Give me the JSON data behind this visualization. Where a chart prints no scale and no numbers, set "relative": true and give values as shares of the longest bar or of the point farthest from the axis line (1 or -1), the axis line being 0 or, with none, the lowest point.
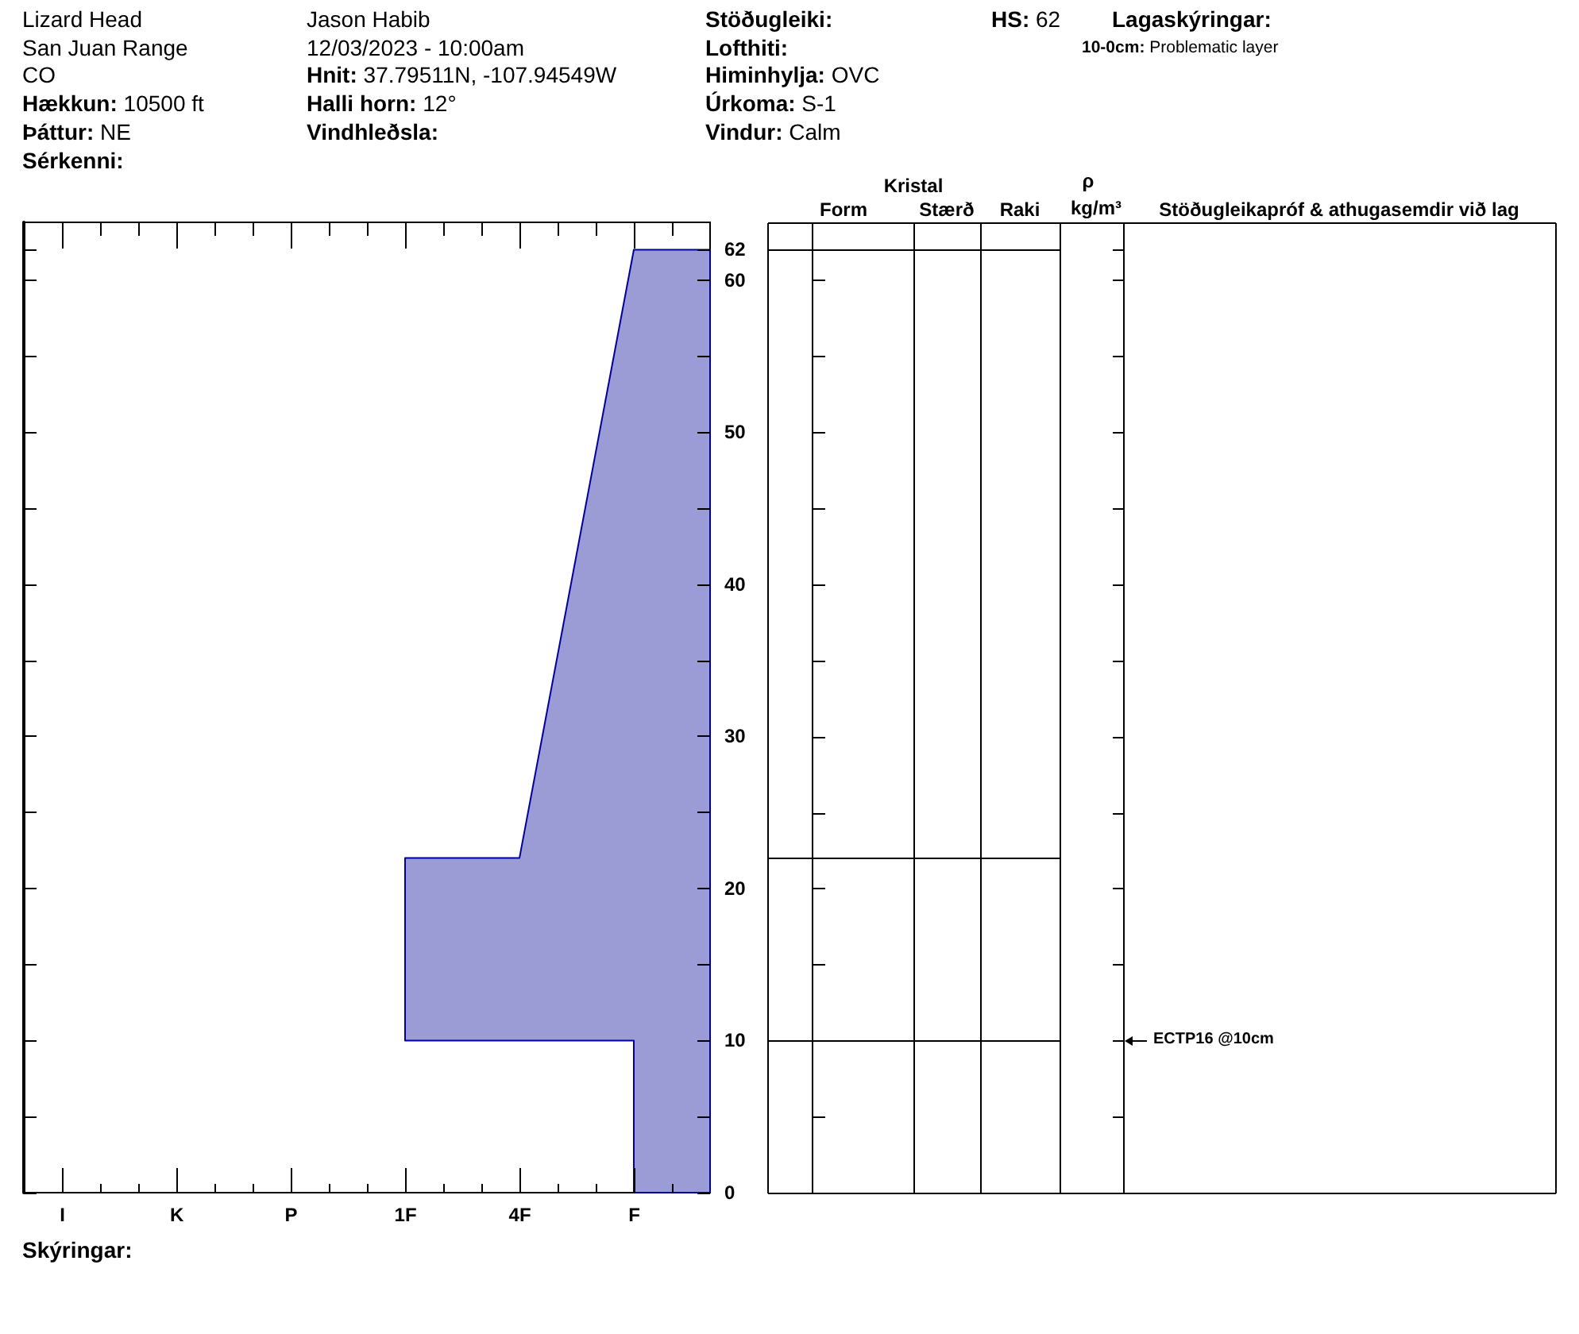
{
  "chart_data": {
    "type": "area",
    "orientation": "horizontal",
    "relative": true,
    "x": [
      0,
      10,
      10,
      22,
      22,
      62
    ],
    "series": [
      {
        "color": "#9b9bd5",
        "values": [
          -0.25,
          -0.25,
          -1,
          -1,
          -0.625,
          -0.25
        ]
      }
    ],
    "ylim": [
      0,
      63.8
    ],
    "yticks": [
      0,
      {
        "value": 5,
        "label": null
      },
      10,
      {
        "value": 15,
        "label": null
      },
      20,
      {
        "value": 25,
        "label": null
      },
      30,
      {
        "value": 35,
        "label": null
      },
      40,
      {
        "value": 45,
        "label": null
      },
      50,
      {
        "value": 55,
        "label": null
      },
      60,
      62
    ],
    "annotations": [
      "Lizard Head",
      "San Juan Range",
      "CO",
      "Hækkun: 10500 ft",
      "Þáttur: NE",
      "Sérkenni:",
      "Jason Habib",
      "12/03/2023 - 10:00am",
      "Hnit: 37.79511N, -107.94549W",
      "Halli horn: 12°",
      "Vindhleðsla:",
      "Stöðugleiki:",
      "Lofthiti:",
      "Himinhylja: OVC",
      "Úrkoma: S-1",
      "Vindur: Calm",
      "HS:62",
      "Lagaskýringar:",
      "10-0cm: Problematic layer",
      "Kristal",
      "Form",
      "Stærð",
      "Raki",
      "ρ",
      "kg/m³",
      "Stöðugleikapróf & athugasemdir við lag",
      "ECTP16 @10cm",
      "I",
      "K",
      "P",
      "1F",
      "4F",
      "F",
      "Skýringar:"
    ]
  }
}
